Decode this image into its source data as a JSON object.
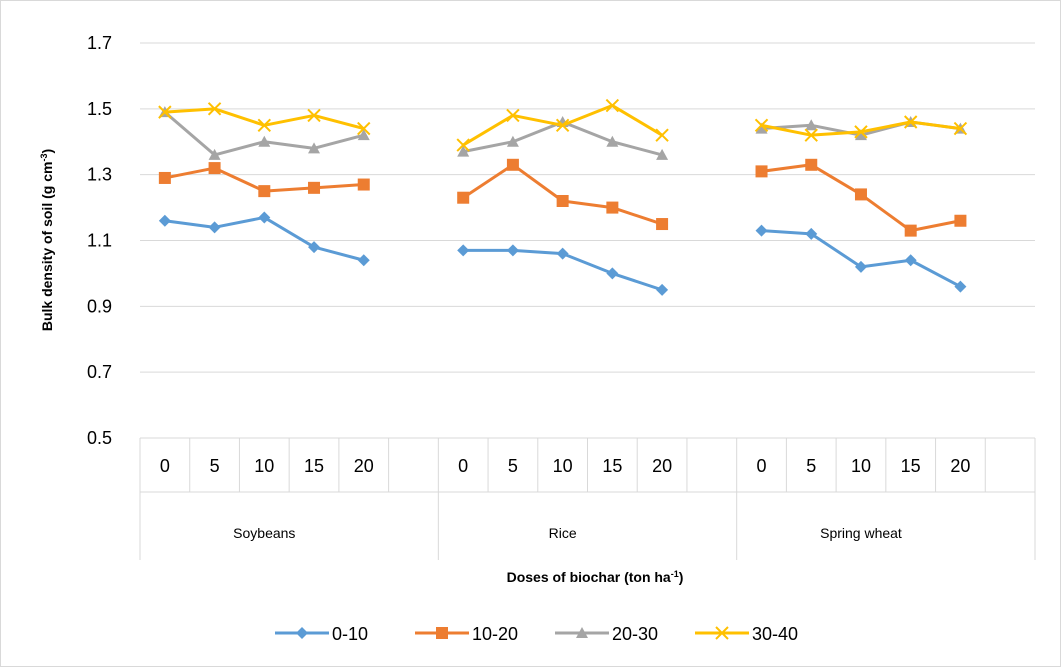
{
  "chart_data": {
    "type": "line",
    "title": "",
    "ylabel": "Bulk density of soil (g cm",
    "ylabel_sup": "-3",
    "ylabel_end": ")",
    "xlabel": "Doses of biochar (ton ha",
    "xlabel_sup": "-1",
    "xlabel_end": ")",
    "ylim": [
      0.5,
      1.7
    ],
    "yticks": [
      "0.5",
      "0.7",
      "0.9",
      "1.1",
      "1.3",
      "1.5",
      "1.7"
    ],
    "grid": true,
    "legend_position": "bottom",
    "groups": [
      {
        "name": "Soybeans",
        "x": [
          "0",
          "5",
          "10",
          "15",
          "20"
        ]
      },
      {
        "name": "Rice",
        "x": [
          "0",
          "5",
          "10",
          "15",
          "20"
        ]
      },
      {
        "name": "Spring wheat",
        "x": [
          "0",
          "5",
          "10",
          "15",
          "20"
        ]
      }
    ],
    "series": [
      {
        "name": "0-10",
        "color": "#5B9BD5",
        "marker": "diamond",
        "values": [
          [
            1.16,
            1.14,
            1.17,
            1.08,
            1.04
          ],
          [
            1.07,
            1.07,
            1.06,
            1.0,
            0.95
          ],
          [
            1.13,
            1.12,
            1.02,
            1.04,
            0.96
          ]
        ]
      },
      {
        "name": "10-20",
        "color": "#ED7D31",
        "marker": "square",
        "values": [
          [
            1.29,
            1.32,
            1.25,
            1.26,
            1.27
          ],
          [
            1.23,
            1.33,
            1.22,
            1.2,
            1.15
          ],
          [
            1.31,
            1.33,
            1.24,
            1.13,
            1.16
          ]
        ]
      },
      {
        "name": "20-30",
        "color": "#A5A5A5",
        "marker": "triangle",
        "values": [
          [
            1.49,
            1.36,
            1.4,
            1.38,
            1.42
          ],
          [
            1.37,
            1.4,
            1.46,
            1.4,
            1.36
          ],
          [
            1.44,
            1.45,
            1.42,
            1.46,
            1.44
          ]
        ]
      },
      {
        "name": "30-40",
        "color": "#FFC000",
        "marker": "x",
        "values": [
          [
            1.49,
            1.5,
            1.45,
            1.48,
            1.44
          ],
          [
            1.39,
            1.48,
            1.45,
            1.51,
            1.42
          ],
          [
            1.45,
            1.42,
            1.43,
            1.46,
            1.44
          ]
        ]
      }
    ]
  }
}
